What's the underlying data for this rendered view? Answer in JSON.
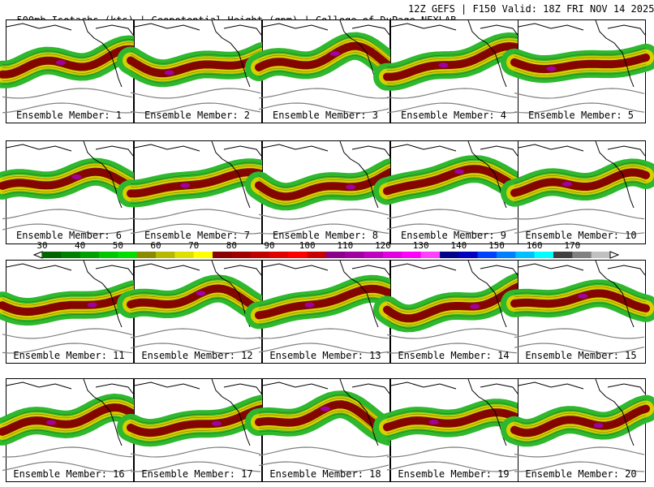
{
  "header": {
    "left": "500mb Isotachs (kts) | Geopotential Height (gpm) | College of DuPage NEXLAB",
    "right": "12Z GEFS | F150 Valid: 18Z FRI NOV 14 2025"
  },
  "members": [
    "Ensemble Member: 1",
    "Ensemble Member: 2",
    "Ensemble Member: 3",
    "Ensemble Member: 4",
    "Ensemble Member: 5",
    "Ensemble Member: 6",
    "Ensemble Member: 7",
    "Ensemble Member: 8",
    "Ensemble Member: 9",
    "Ensemble Member: 10",
    "Ensemble Member: 11",
    "Ensemble Member: 12",
    "Ensemble Member: 13",
    "Ensemble Member: 14",
    "Ensemble Member: 15",
    "Ensemble Member: 16",
    "Ensemble Member: 17",
    "Ensemble Member: 18",
    "Ensemble Member: 19",
    "Ensemble Member: 20"
  ],
  "colorbar": {
    "labels": [
      "30",
      "40",
      "50",
      "60",
      "70",
      "80",
      "90",
      "100",
      "110",
      "120",
      "130",
      "140",
      "150",
      "160",
      "170"
    ],
    "colors": [
      "#006400",
      "#008000",
      "#00a000",
      "#00c800",
      "#00e000",
      "#8b8b00",
      "#b8b800",
      "#e0e000",
      "#ffff00",
      "#8b0000",
      "#a00000",
      "#c00000",
      "#e00000",
      "#ff0000",
      "#c80000",
      "#8b008b",
      "#a000a0",
      "#c000c0",
      "#e000e0",
      "#ff00ff",
      "#ff40ff",
      "#00008b",
      "#0000c0",
      "#0040ff",
      "#0080ff",
      "#00c0ff",
      "#00ffff",
      "#404040",
      "#808080",
      "#c0c0c0"
    ],
    "units": "kts"
  },
  "colors": {
    "jet_green": "#2db82d",
    "jet_yellow": "#d6d000",
    "jet_core": "#8b0000",
    "jet_max": "#a000a0",
    "height_contour": "#808080",
    "coast": "#000000"
  }
}
